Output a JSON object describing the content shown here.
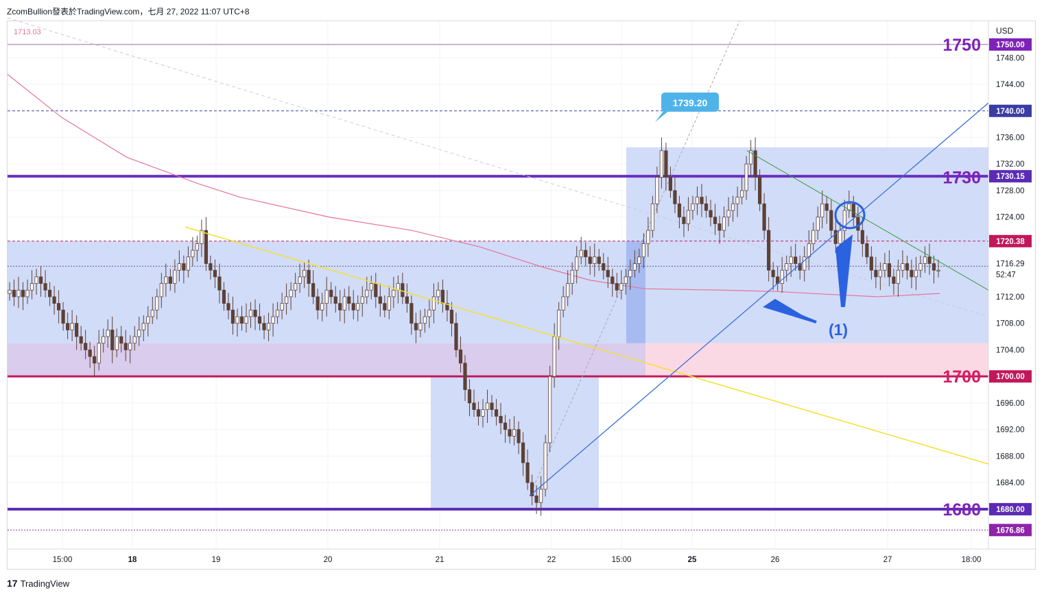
{
  "header": {
    "text": "ZcomBullion發表於TradingView.com，七月 27, 2022 11:07 UTC+8"
  },
  "footer": {
    "logo_mark": "17",
    "brand": "TradingView"
  },
  "chart_data": {
    "type": "candlestick",
    "symbol_currency": "USD",
    "ylim": [
      1674,
      1753.5
    ],
    "y_ticks": [
      "1748.00",
      "1744.00",
      "1736.00",
      "1732.00",
      "1728.00",
      "1724.00",
      "1712.00",
      "1708.00",
      "1704.00",
      "1696.00",
      "1692.00",
      "1688.00",
      "1684.00"
    ],
    "x_ticks": [
      "15:00",
      "18",
      "19",
      "20",
      "21",
      "22",
      "15:00",
      "25",
      "26",
      "27",
      "18:00"
    ],
    "bold_x_ticks": [
      "18",
      "25"
    ],
    "price_labels": [
      {
        "value": 1750.0,
        "text": "1750.00",
        "bg": "#7e22b8"
      },
      {
        "value": 1740.0,
        "text": "1740.00",
        "bg": "#3c3ca6"
      },
      {
        "value": 1730.15,
        "text": "1730.15",
        "bg": "#5b2bb5"
      },
      {
        "value": 1720.38,
        "text": "1720.38",
        "bg": "#c2185b"
      },
      {
        "value": 1700.0,
        "text": "1700.00",
        "bg": "#c2185b"
      },
      {
        "value": 1680.0,
        "text": "1680.00",
        "bg": "#5b2bb5"
      },
      {
        "value": 1676.86,
        "text": "1676.86",
        "bg": "#8e24aa"
      }
    ],
    "current_price": {
      "value": "1716.29",
      "countdown": "52:47"
    },
    "big_level_labels": [
      {
        "text": "1750",
        "value": 1750,
        "color": "#7e22b8"
      },
      {
        "text": "1730",
        "value": 1730,
        "color": "#7e22b8"
      },
      {
        "text": "1700",
        "value": 1700,
        "color": "#d81b60"
      },
      {
        "text": "1680",
        "value": 1680,
        "color": "#7e22b8"
      }
    ],
    "corner_label": "1713.03",
    "callout": {
      "text": "1739.20",
      "value": 1739.2
    },
    "annotation": "(1)",
    "colors": {
      "up": "#ffffff",
      "down": "#5d4037",
      "zone_blue": "#c9d6f7",
      "zone_pink": "#fbd9e4",
      "ma_line": "#e57399",
      "trend_yellow": "#f5e033",
      "trend_blue": "#3a6fd8",
      "trend_green": "#3a9a3a",
      "arrow_blue": "#2a62e0"
    },
    "candles_close": [
      1713,
      1712,
      1713,
      1712,
      1713,
      1714,
      1715,
      1714,
      1713,
      1712,
      1711,
      1710,
      1708,
      1707,
      1708,
      1706,
      1705,
      1704,
      1703,
      1702,
      1705,
      1706,
      1707,
      1704,
      1706,
      1705,
      1704,
      1705,
      1706,
      1707,
      1708,
      1709,
      1710,
      1712,
      1714,
      1715,
      1714,
      1716,
      1717,
      1716,
      1718,
      1719,
      1720,
      1722,
      1717,
      1716,
      1715,
      1713,
      1711,
      1710,
      1708,
      1709,
      1708,
      1709,
      1710,
      1709,
      1708,
      1707,
      1708,
      1709,
      1710,
      1711,
      1712,
      1713,
      1714,
      1715,
      1716,
      1714,
      1712,
      1710,
      1711,
      1713,
      1712,
      1711,
      1710,
      1712,
      1711,
      1710,
      1711,
      1712,
      1713,
      1714,
      1712,
      1711,
      1710,
      1712,
      1713,
      1714,
      1712,
      1711,
      1708,
      1707,
      1708,
      1709,
      1710,
      1712,
      1713,
      1711,
      1710,
      1708,
      1704,
      1702,
      1698,
      1696,
      1695,
      1694,
      1695,
      1696,
      1695,
      1694,
      1693,
      1692,
      1691,
      1692,
      1690,
      1687,
      1684,
      1682,
      1681,
      1683,
      1690,
      1700,
      1706,
      1710,
      1712,
      1714,
      1716,
      1718,
      1719,
      1718,
      1717,
      1718,
      1717,
      1716,
      1715,
      1714,
      1713,
      1714,
      1715,
      1716,
      1717,
      1718,
      1720,
      1722,
      1726,
      1730,
      1734,
      1730,
      1728,
      1726,
      1724,
      1723,
      1725,
      1726,
      1727,
      1726,
      1725,
      1724,
      1723,
      1722,
      1724,
      1725,
      1726,
      1727,
      1728,
      1732,
      1734,
      1730,
      1726,
      1722,
      1716,
      1715,
      1714,
      1716,
      1717,
      1718,
      1717,
      1716,
      1718,
      1720,
      1722,
      1724,
      1726,
      1725,
      1722,
      1720,
      1722,
      1725,
      1726,
      1724,
      1722,
      1720,
      1718,
      1716,
      1715,
      1716,
      1717,
      1715,
      1714,
      1716,
      1717,
      1716,
      1715,
      1716,
      1717,
      1718,
      1717,
      1716,
      1716
    ],
    "bottom_tick": "1676.86"
  }
}
